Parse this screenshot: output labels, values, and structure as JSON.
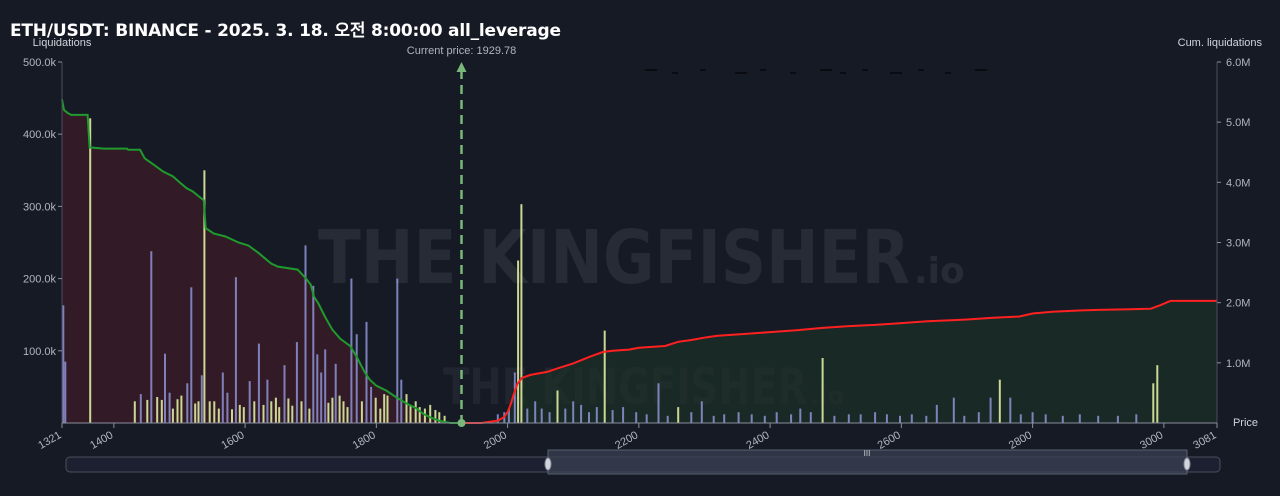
{
  "title": "ETH/USDT: BINANCE - 2025. 3. 18. 오전 8:00:00 all_leverage",
  "watermark": {
    "text": "THE KINGFISHER",
    "suffix": ".io"
  },
  "colors": {
    "background": "#161a25",
    "long_bar": "#d6e29a",
    "short_bar": "#8e94d6",
    "cum_long_line": "#1f9a2c",
    "cum_short_line": "#ff2020",
    "current_price": "#79b879"
  },
  "chart_data": {
    "type": "bar",
    "current_price_label": "Current price: 1929.78",
    "current_price": 1929.78,
    "xlabel": "Price",
    "ylabel_left": "Liquidations",
    "ylabel_right": "Cum. liquidations",
    "xlim": [
      1321,
      3081
    ],
    "ylim_left": [
      0,
      500000
    ],
    "ylim_right": [
      0,
      6000000
    ],
    "x_ticks": [
      "1321",
      "1400",
      "1600",
      "1800",
      "2000",
      "2200",
      "2400",
      "2600",
      "2800",
      "3000",
      "3081"
    ],
    "y_ticks_left": [
      "100.0k",
      "200.0k",
      "300.0k",
      "400.0k",
      "500.0k"
    ],
    "y_ticks_right": [
      "1.0M",
      "2.0M",
      "3.0M",
      "4.0M",
      "5.0M",
      "6.0M"
    ],
    "legend": "top-center",
    "bars": [
      {
        "x": 1323,
        "y": 163000,
        "c": "s"
      },
      {
        "x": 1326,
        "y": 85000,
        "c": "s"
      },
      {
        "x": 1364,
        "y": 422000,
        "c": "l"
      },
      {
        "x": 1432,
        "y": 30000,
        "c": "l"
      },
      {
        "x": 1441,
        "y": 40000,
        "c": "s"
      },
      {
        "x": 1451,
        "y": 32000,
        "c": "l"
      },
      {
        "x": 1457,
        "y": 238000,
        "c": "s"
      },
      {
        "x": 1466,
        "y": 36000,
        "c": "l"
      },
      {
        "x": 1473,
        "y": 32000,
        "c": "l"
      },
      {
        "x": 1478,
        "y": 96000,
        "c": "s"
      },
      {
        "x": 1485,
        "y": 42000,
        "c": "s"
      },
      {
        "x": 1490,
        "y": 20000,
        "c": "l"
      },
      {
        "x": 1497,
        "y": 33000,
        "c": "l"
      },
      {
        "x": 1503,
        "y": 38000,
        "c": "l"
      },
      {
        "x": 1512,
        "y": 55000,
        "c": "s"
      },
      {
        "x": 1518,
        "y": 188000,
        "c": "s"
      },
      {
        "x": 1524,
        "y": 27000,
        "c": "l"
      },
      {
        "x": 1529,
        "y": 30000,
        "c": "l"
      },
      {
        "x": 1534,
        "y": 66000,
        "c": "s"
      },
      {
        "x": 1538,
        "y": 350000,
        "c": "l"
      },
      {
        "x": 1546,
        "y": 30000,
        "c": "l"
      },
      {
        "x": 1553,
        "y": 30000,
        "c": "l"
      },
      {
        "x": 1560,
        "y": 20000,
        "c": "l"
      },
      {
        "x": 1566,
        "y": 70000,
        "c": "s"
      },
      {
        "x": 1573,
        "y": 42000,
        "c": "s"
      },
      {
        "x": 1580,
        "y": 19000,
        "c": "l"
      },
      {
        "x": 1586,
        "y": 202000,
        "c": "s"
      },
      {
        "x": 1592,
        "y": 25000,
        "c": "l"
      },
      {
        "x": 1598,
        "y": 22000,
        "c": "l"
      },
      {
        "x": 1607,
        "y": 58000,
        "c": "s"
      },
      {
        "x": 1614,
        "y": 30000,
        "c": "l"
      },
      {
        "x": 1621,
        "y": 110000,
        "c": "s"
      },
      {
        "x": 1628,
        "y": 25000,
        "c": "l"
      },
      {
        "x": 1634,
        "y": 60000,
        "c": "s"
      },
      {
        "x": 1640,
        "y": 30000,
        "c": "l"
      },
      {
        "x": 1647,
        "y": 35000,
        "c": "l"
      },
      {
        "x": 1652,
        "y": 22000,
        "c": "l"
      },
      {
        "x": 1660,
        "y": 80000,
        "c": "s"
      },
      {
        "x": 1666,
        "y": 34000,
        "c": "l"
      },
      {
        "x": 1672,
        "y": 24000,
        "c": "l"
      },
      {
        "x": 1679,
        "y": 112000,
        "c": "s"
      },
      {
        "x": 1686,
        "y": 30000,
        "c": "l"
      },
      {
        "x": 1692,
        "y": 246000,
        "c": "s"
      },
      {
        "x": 1698,
        "y": 20000,
        "c": "l"
      },
      {
        "x": 1704,
        "y": 190000,
        "c": "s"
      },
      {
        "x": 1710,
        "y": 95000,
        "c": "s"
      },
      {
        "x": 1716,
        "y": 70000,
        "c": "s"
      },
      {
        "x": 1722,
        "y": 102000,
        "c": "s"
      },
      {
        "x": 1727,
        "y": 28000,
        "c": "l"
      },
      {
        "x": 1733,
        "y": 35000,
        "c": "l"
      },
      {
        "x": 1738,
        "y": 82000,
        "c": "s"
      },
      {
        "x": 1744,
        "y": 38000,
        "c": "l"
      },
      {
        "x": 1750,
        "y": 30000,
        "c": "l"
      },
      {
        "x": 1756,
        "y": 22000,
        "c": "l"
      },
      {
        "x": 1762,
        "y": 200000,
        "c": "s"
      },
      {
        "x": 1770,
        "y": 123000,
        "c": "s"
      },
      {
        "x": 1778,
        "y": 30000,
        "c": "l"
      },
      {
        "x": 1785,
        "y": 140000,
        "c": "s"
      },
      {
        "x": 1792,
        "y": 50000,
        "c": "s"
      },
      {
        "x": 1799,
        "y": 35000,
        "c": "l"
      },
      {
        "x": 1806,
        "y": 20000,
        "c": "l"
      },
      {
        "x": 1812,
        "y": 40000,
        "c": "l"
      },
      {
        "x": 1817,
        "y": 38000,
        "c": "l"
      },
      {
        "x": 1832,
        "y": 200000,
        "c": "s"
      },
      {
        "x": 1838,
        "y": 60000,
        "c": "s"
      },
      {
        "x": 1846,
        "y": 40000,
        "c": "l"
      },
      {
        "x": 1852,
        "y": 25000,
        "c": "l"
      },
      {
        "x": 1860,
        "y": 30000,
        "c": "l"
      },
      {
        "x": 1866,
        "y": 22000,
        "c": "l"
      },
      {
        "x": 1874,
        "y": 20000,
        "c": "l"
      },
      {
        "x": 1882,
        "y": 25000,
        "c": "l"
      },
      {
        "x": 1890,
        "y": 18000,
        "c": "l"
      },
      {
        "x": 1896,
        "y": 15000,
        "c": "l"
      },
      {
        "x": 1904,
        "y": 10000,
        "c": "l"
      },
      {
        "x": 1985,
        "y": 12000,
        "c": "s"
      },
      {
        "x": 1995,
        "y": 15000,
        "c": "s"
      },
      {
        "x": 2002,
        "y": 20000,
        "c": "s"
      },
      {
        "x": 2011,
        "y": 70000,
        "c": "s"
      },
      {
        "x": 2016,
        "y": 225000,
        "c": "l"
      },
      {
        "x": 2021,
        "y": 303000,
        "c": "l"
      },
      {
        "x": 2030,
        "y": 20000,
        "c": "s"
      },
      {
        "x": 2042,
        "y": 30000,
        "c": "s"
      },
      {
        "x": 2052,
        "y": 20000,
        "c": "s"
      },
      {
        "x": 2064,
        "y": 15000,
        "c": "s"
      },
      {
        "x": 2076,
        "y": 45000,
        "c": "l"
      },
      {
        "x": 2088,
        "y": 20000,
        "c": "s"
      },
      {
        "x": 2100,
        "y": 30000,
        "c": "s"
      },
      {
        "x": 2112,
        "y": 25000,
        "c": "s"
      },
      {
        "x": 2124,
        "y": 15000,
        "c": "s"
      },
      {
        "x": 2136,
        "y": 22000,
        "c": "s"
      },
      {
        "x": 2148,
        "y": 128000,
        "c": "l"
      },
      {
        "x": 2160,
        "y": 18000,
        "c": "s"
      },
      {
        "x": 2176,
        "y": 22000,
        "c": "s"
      },
      {
        "x": 2196,
        "y": 15000,
        "c": "s"
      },
      {
        "x": 2212,
        "y": 12000,
        "c": "s"
      },
      {
        "x": 2230,
        "y": 55000,
        "c": "s"
      },
      {
        "x": 2244,
        "y": 10000,
        "c": "s"
      },
      {
        "x": 2260,
        "y": 22000,
        "c": "l"
      },
      {
        "x": 2280,
        "y": 15000,
        "c": "s"
      },
      {
        "x": 2296,
        "y": 30000,
        "c": "s"
      },
      {
        "x": 2314,
        "y": 10000,
        "c": "s"
      },
      {
        "x": 2330,
        "y": 12000,
        "c": "s"
      },
      {
        "x": 2352,
        "y": 15000,
        "c": "s"
      },
      {
        "x": 2372,
        "y": 12000,
        "c": "s"
      },
      {
        "x": 2392,
        "y": 10000,
        "c": "s"
      },
      {
        "x": 2410,
        "y": 15000,
        "c": "s"
      },
      {
        "x": 2432,
        "y": 12000,
        "c": "s"
      },
      {
        "x": 2446,
        "y": 20000,
        "c": "s"
      },
      {
        "x": 2462,
        "y": 15000,
        "c": "s"
      },
      {
        "x": 2480,
        "y": 90000,
        "c": "l"
      },
      {
        "x": 2498,
        "y": 10000,
        "c": "s"
      },
      {
        "x": 2520,
        "y": 12000,
        "c": "s"
      },
      {
        "x": 2538,
        "y": 12000,
        "c": "s"
      },
      {
        "x": 2560,
        "y": 15000,
        "c": "s"
      },
      {
        "x": 2578,
        "y": 12000,
        "c": "s"
      },
      {
        "x": 2598,
        "y": 10000,
        "c": "s"
      },
      {
        "x": 2616,
        "y": 12000,
        "c": "s"
      },
      {
        "x": 2638,
        "y": 10000,
        "c": "s"
      },
      {
        "x": 2654,
        "y": 25000,
        "c": "s"
      },
      {
        "x": 2680,
        "y": 35000,
        "c": "s"
      },
      {
        "x": 2696,
        "y": 10000,
        "c": "s"
      },
      {
        "x": 2718,
        "y": 15000,
        "c": "s"
      },
      {
        "x": 2736,
        "y": 35000,
        "c": "s"
      },
      {
        "x": 2750,
        "y": 60000,
        "c": "l"
      },
      {
        "x": 2766,
        "y": 35000,
        "c": "s"
      },
      {
        "x": 2782,
        "y": 12000,
        "c": "s"
      },
      {
        "x": 2800,
        "y": 15000,
        "c": "s"
      },
      {
        "x": 2820,
        "y": 12000,
        "c": "s"
      },
      {
        "x": 2846,
        "y": 10000,
        "c": "s"
      },
      {
        "x": 2872,
        "y": 12000,
        "c": "s"
      },
      {
        "x": 2900,
        "y": 10000,
        "c": "s"
      },
      {
        "x": 2930,
        "y": 10000,
        "c": "s"
      },
      {
        "x": 2958,
        "y": 12000,
        "c": "s"
      },
      {
        "x": 2984,
        "y": 55000,
        "c": "l"
      },
      {
        "x": 2990,
        "y": 80000,
        "c": "l"
      }
    ],
    "cum_long": [
      [
        1321,
        5380000
      ],
      [
        1324,
        5200000
      ],
      [
        1330,
        5150000
      ],
      [
        1335,
        5120000
      ],
      [
        1360,
        5120000
      ],
      [
        1363,
        4580000
      ],
      [
        1385,
        4560000
      ],
      [
        1420,
        4560000
      ],
      [
        1422,
        4540000
      ],
      [
        1440,
        4540000
      ],
      [
        1447,
        4400000
      ],
      [
        1460,
        4300000
      ],
      [
        1475,
        4180000
      ],
      [
        1490,
        4100000
      ],
      [
        1500,
        4000000
      ],
      [
        1511,
        3900000
      ],
      [
        1520,
        3850000
      ],
      [
        1537,
        3700000
      ],
      [
        1540,
        3240000
      ],
      [
        1552,
        3150000
      ],
      [
        1570,
        3100000
      ],
      [
        1590,
        3000000
      ],
      [
        1605,
        2950000
      ],
      [
        1620,
        2830000
      ],
      [
        1640,
        2650000
      ],
      [
        1650,
        2600000
      ],
      [
        1680,
        2550000
      ],
      [
        1693,
        2400000
      ],
      [
        1700,
        2300000
      ],
      [
        1705,
        2100000
      ],
      [
        1712,
        1980000
      ],
      [
        1722,
        1760000
      ],
      [
        1733,
        1550000
      ],
      [
        1745,
        1400000
      ],
      [
        1760,
        1280000
      ],
      [
        1770,
        1100000
      ],
      [
        1782,
        850000
      ],
      [
        1790,
        720000
      ],
      [
        1800,
        620000
      ],
      [
        1815,
        540000
      ],
      [
        1830,
        430000
      ],
      [
        1845,
        330000
      ],
      [
        1860,
        250000
      ],
      [
        1872,
        150000
      ],
      [
        1883,
        90000
      ],
      [
        1895,
        40000
      ],
      [
        1905,
        15000
      ],
      [
        1914,
        0
      ],
      [
        1929.78,
        0
      ]
    ],
    "cum_short": [
      [
        1929.78,
        0
      ],
      [
        1960,
        0
      ],
      [
        1985,
        40000
      ],
      [
        1995,
        100000
      ],
      [
        2000,
        180000
      ],
      [
        2005,
        320000
      ],
      [
        2010,
        500000
      ],
      [
        2015,
        650000
      ],
      [
        2022,
        750000
      ],
      [
        2035,
        800000
      ],
      [
        2060,
        850000
      ],
      [
        2080,
        920000
      ],
      [
        2100,
        990000
      ],
      [
        2125,
        1100000
      ],
      [
        2145,
        1180000
      ],
      [
        2160,
        1200000
      ],
      [
        2185,
        1220000
      ],
      [
        2200,
        1250000
      ],
      [
        2240,
        1280000
      ],
      [
        2260,
        1350000
      ],
      [
        2280,
        1380000
      ],
      [
        2300,
        1420000
      ],
      [
        2320,
        1450000
      ],
      [
        2360,
        1480000
      ],
      [
        2400,
        1510000
      ],
      [
        2440,
        1540000
      ],
      [
        2480,
        1580000
      ],
      [
        2520,
        1610000
      ],
      [
        2560,
        1630000
      ],
      [
        2600,
        1660000
      ],
      [
        2640,
        1690000
      ],
      [
        2680,
        1710000
      ],
      [
        2700,
        1720000
      ],
      [
        2740,
        1750000
      ],
      [
        2780,
        1770000
      ],
      [
        2800,
        1820000
      ],
      [
        2830,
        1850000
      ],
      [
        2870,
        1870000
      ],
      [
        2900,
        1880000
      ],
      [
        2950,
        1890000
      ],
      [
        2980,
        1900000
      ],
      [
        2995,
        1960000
      ],
      [
        3010,
        2030000
      ],
      [
        3081,
        2030000
      ]
    ]
  },
  "scrollbar": {
    "handle_glyph": "III"
  }
}
